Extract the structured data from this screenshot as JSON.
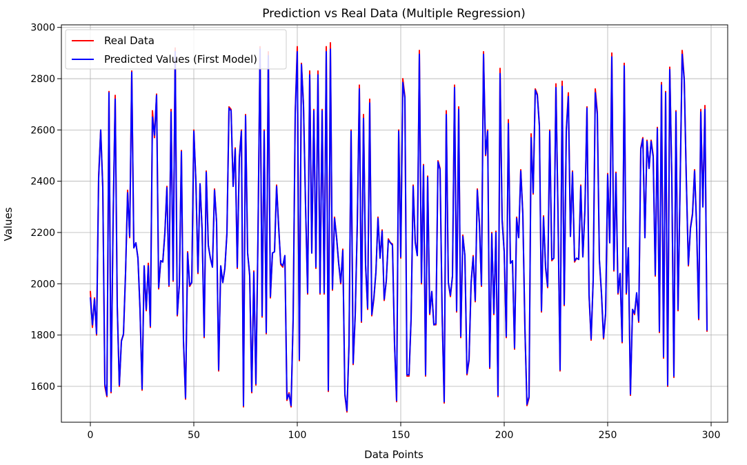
{
  "chart_data": {
    "type": "line",
    "title": "Prediction vs Real Data (Multiple Regression)",
    "xlabel": "Data Points",
    "ylabel": "Values",
    "xlim": [
      -14,
      308
    ],
    "ylim": [
      1460,
      3010
    ],
    "xticks": [
      0,
      50,
      100,
      150,
      200,
      250,
      300
    ],
    "yticks": [
      1600,
      1800,
      2000,
      2200,
      2400,
      2600,
      2800,
      3000
    ],
    "grid": true,
    "legend_position": "top-left",
    "series": [
      {
        "name": "Real Data",
        "color": "#ff0000",
        "values": [
          1970,
          1830,
          1945,
          1800,
          2420,
          2600,
          2380,
          1600,
          1560,
          2750,
          1575,
          2250,
          2735,
          1915,
          1600,
          1780,
          1800,
          2040,
          2365,
          2180,
          2830,
          2140,
          2160,
          2100,
          1900,
          1585,
          2070,
          1895,
          2080,
          1830,
          2675,
          2570,
          2740,
          1980,
          2090,
          2085,
          2200,
          2380,
          1990,
          2680,
          2010,
          2920,
          1875,
          1995,
          2520,
          1775,
          1550,
          2125,
          1990,
          2005,
          2600,
          2400,
          2040,
          2390,
          2215,
          1790,
          2440,
          2150,
          2100,
          2065,
          2370,
          2240,
          1660,
          2070,
          2005,
          2060,
          2200,
          2690,
          2680,
          2380,
          2530,
          2060,
          2495,
          2600,
          1520,
          2660,
          2120,
          2030,
          1575,
          2050,
          1605,
          2180,
          2925,
          1870,
          2600,
          1805,
          2905,
          1945,
          2120,
          2125,
          2385,
          2225,
          2075,
          2065,
          2110,
          1545,
          1575,
          1520,
          1860,
          2670,
          2925,
          1700,
          2860,
          2700,
          2305,
          1960,
          2830,
          2120,
          2680,
          2060,
          2830,
          1960,
          2680,
          1960,
          2925,
          1580,
          2940,
          1975,
          2260,
          2180,
          2080,
          2000,
          2135,
          1565,
          1500,
          1760,
          2600,
          1685,
          1875,
          2235,
          2775,
          1850,
          2660,
          2070,
          1900,
          2720,
          1875,
          1940,
          2045,
          2260,
          2100,
          2210,
          1935,
          2010,
          2175,
          2160,
          2155,
          1760,
          1540,
          2600,
          2100,
          2800,
          2730,
          1640,
          1640,
          1860,
          2385,
          2165,
          2110,
          2910,
          2000,
          2465,
          1640,
          2420,
          1880,
          1970,
          1840,
          1840,
          2480,
          2450,
          1880,
          1535,
          2675,
          2005,
          1950,
          2030,
          2775,
          1890,
          2690,
          1790,
          2190,
          2110,
          1645,
          1700,
          2000,
          2110,
          1930,
          2370,
          2240,
          1990,
          2905,
          2500,
          2600,
          1670,
          2200,
          1880,
          2205,
          1560,
          2840,
          2250,
          2125,
          1790,
          2640,
          2080,
          2090,
          1745,
          2260,
          2180,
          2445,
          2275,
          1825,
          1525,
          1555,
          2585,
          2350,
          2760,
          2740,
          2620,
          1890,
          2265,
          2060,
          1985,
          2600,
          2090,
          2100,
          2780,
          2270,
          1660,
          2790,
          1915,
          2600,
          2745,
          2185,
          2440,
          2085,
          2100,
          2095,
          2385,
          2105,
          2290,
          2690,
          1955,
          1780,
          2015,
          2760,
          2670,
          2090,
          1960,
          1785,
          1880,
          2430,
          2160,
          2900,
          2050,
          2435,
          1960,
          2040,
          1770,
          2860,
          1960,
          2140,
          1565,
          1900,
          1880,
          1960,
          1850,
          2530,
          2570,
          2180,
          2560,
          2450,
          2560,
          2500,
          2030,
          2610,
          1810,
          2785,
          1710,
          2750,
          1600,
          2845,
          2410,
          1635,
          2675,
          1895,
          2380,
          2910,
          2800,
          2410,
          2070,
          2220,
          2275,
          2445,
          2220,
          1860,
          2680,
          2300,
          2695,
          1815
        ]
      },
      {
        "name": "Predicted Values (First Model)",
        "color": "#0000ff",
        "values": [
          1945,
          1840,
          1940,
          1805,
          2410,
          2600,
          2375,
          1610,
          1565,
          2745,
          1580,
          2255,
          2720,
          1910,
          1605,
          1775,
          1805,
          2040,
          2355,
          2185,
          2825,
          2140,
          2160,
          2100,
          1900,
          1590,
          2070,
          1900,
          2070,
          1835,
          2650,
          2580,
          2735,
          1985,
          2090,
          2085,
          2195,
          2375,
          1995,
          2670,
          2015,
          2905,
          1880,
          1995,
          2515,
          1780,
          1555,
          2120,
          1995,
          2005,
          2595,
          2400,
          2045,
          2390,
          2210,
          1795,
          2435,
          2150,
          2100,
          2065,
          2365,
          2240,
          1665,
          2070,
          2005,
          2060,
          2195,
          2685,
          2675,
          2380,
          2525,
          2065,
          2490,
          2595,
          1525,
          2655,
          2120,
          2035,
          1580,
          2045,
          1610,
          2180,
          2915,
          1875,
          2595,
          1810,
          2890,
          1950,
          2120,
          2125,
          2380,
          2220,
          2080,
          2070,
          2110,
          1550,
          1570,
          1525,
          1865,
          2660,
          2905,
          1705,
          2855,
          2695,
          2305,
          1965,
          2815,
          2120,
          2675,
          2065,
          2815,
          1965,
          2675,
          1965,
          2905,
          1585,
          2915,
          1980,
          2255,
          2180,
          2080,
          2005,
          2130,
          1570,
          1505,
          1765,
          2595,
          1690,
          1880,
          2230,
          2760,
          1855,
          2645,
          2075,
          1905,
          2705,
          1880,
          1945,
          2045,
          2255,
          2100,
          2205,
          1940,
          2010,
          2170,
          2160,
          2150,
          1765,
          1545,
          2595,
          2105,
          2785,
          2725,
          1645,
          1645,
          1865,
          2380,
          2160,
          2110,
          2895,
          2005,
          2460,
          1645,
          2415,
          1885,
          1970,
          1840,
          1845,
          2475,
          2445,
          1885,
          1540,
          2660,
          2005,
          1955,
          2030,
          2765,
          1895,
          2680,
          1795,
          2185,
          2110,
          1650,
          1705,
          2005,
          2105,
          1935,
          2365,
          2235,
          1995,
          2895,
          2505,
          2595,
          1675,
          2195,
          1885,
          2200,
          1565,
          2820,
          2245,
          2125,
          1795,
          2625,
          2080,
          2090,
          1750,
          2255,
          2180,
          2440,
          2270,
          1830,
          1530,
          1560,
          2570,
          2355,
          2755,
          2735,
          2615,
          1895,
          2260,
          2065,
          1990,
          2595,
          2095,
          2100,
          2765,
          2270,
          1665,
          2770,
          1920,
          2595,
          2730,
          2185,
          2435,
          2090,
          2100,
          2095,
          2380,
          2105,
          2285,
          2685,
          1960,
          1785,
          2015,
          2745,
          2660,
          2095,
          1965,
          1790,
          1885,
          2425,
          2160,
          2885,
          2055,
          2430,
          1965,
          2040,
          1775,
          2850,
          1965,
          2140,
          1570,
          1900,
          1885,
          1965,
          1855,
          2525,
          2565,
          2180,
          2555,
          2450,
          2555,
          2495,
          2035,
          2605,
          1815,
          2775,
          1715,
          2745,
          1605,
          2835,
          2410,
          1640,
          2670,
          1900,
          2380,
          2895,
          2795,
          2410,
          2075,
          2215,
          2270,
          2440,
          2220,
          1865,
          2670,
          2300,
          2680,
          1820
        ]
      }
    ]
  }
}
